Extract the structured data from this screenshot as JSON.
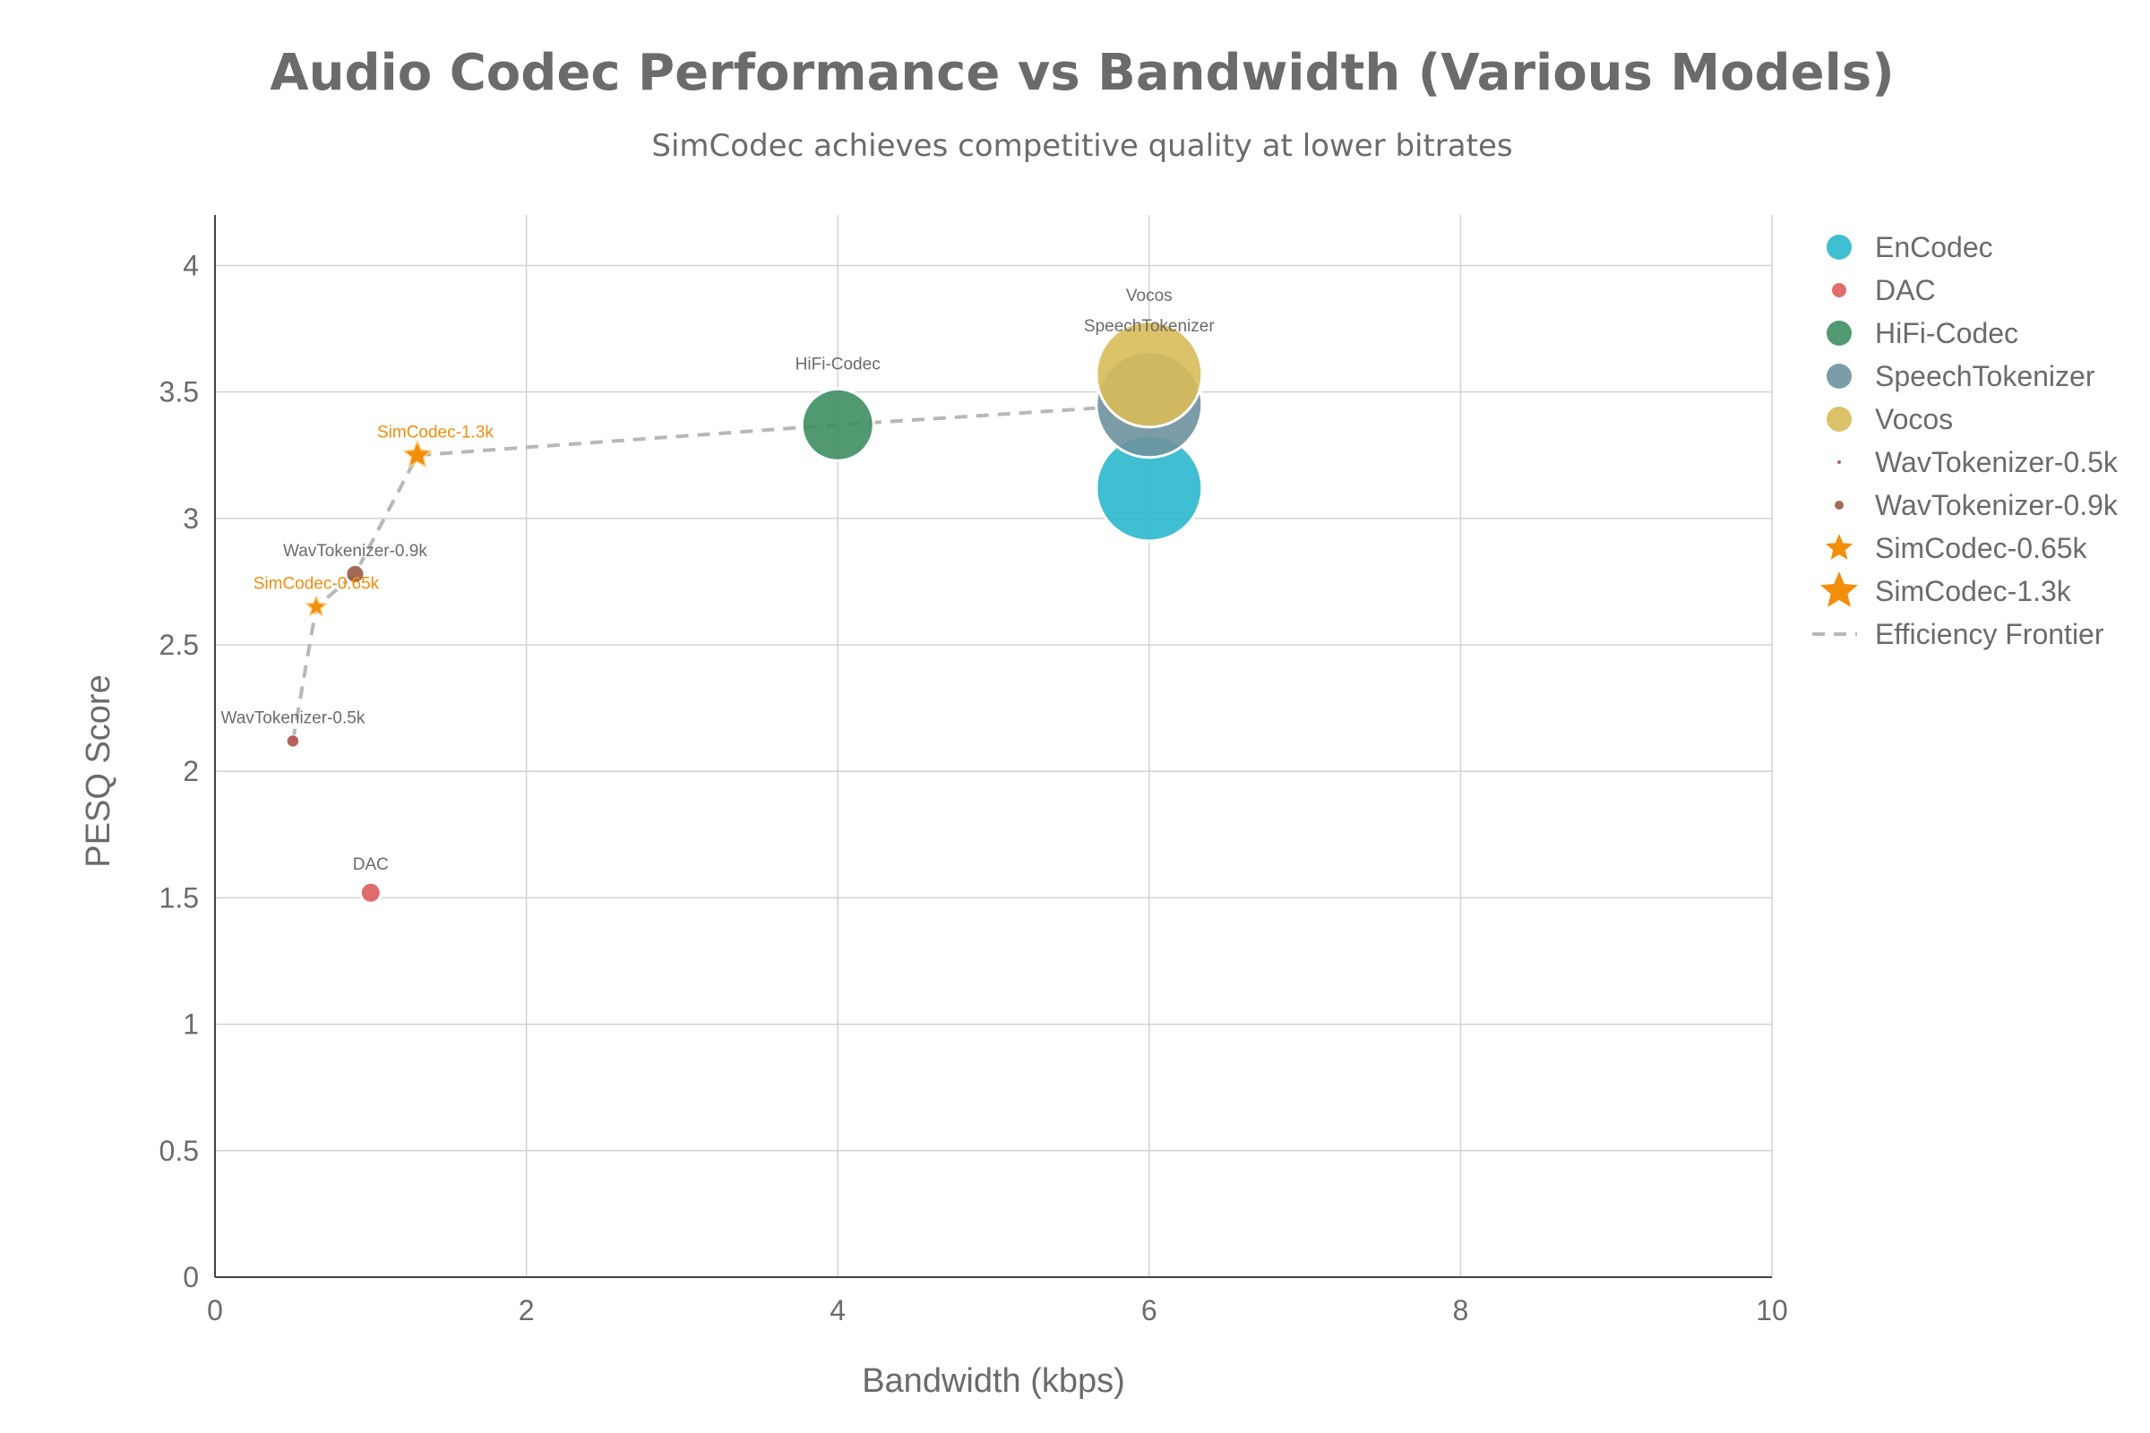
{
  "chart_data": {
    "type": "scatter",
    "title": "Audio Codec Performance vs Bandwidth (Various Models)",
    "subtitle": "SimCodec achieves competitive quality at lower bitrates",
    "xlabel": "Bandwidth (kbps)",
    "ylabel": "PESQ Score",
    "xlim": [
      0,
      10
    ],
    "ylim": [
      0,
      4.2
    ],
    "xticks": [
      0,
      2,
      4,
      6,
      8,
      10
    ],
    "xtick_labels": [
      "0",
      "2",
      "4",
      "6",
      "8",
      "10"
    ],
    "yticks": [
      0,
      0.5,
      1,
      1.5,
      2,
      2.5,
      3,
      3.5,
      4
    ],
    "ytick_labels": [
      "0",
      "0.5",
      "1",
      "1.5",
      "2",
      "2.5",
      "3",
      "3.5",
      "4"
    ],
    "grid": true,
    "legend_position": "right",
    "series": [
      {
        "name": "EnCodec",
        "marker": "circle",
        "color": "#2bb7cd",
        "x": 6,
        "y": 3.12,
        "size": 6,
        "label": ""
      },
      {
        "name": "DAC",
        "marker": "circle",
        "color": "#dd5c5c",
        "x": 1,
        "y": 1.52,
        "size": 1,
        "label": "DAC"
      },
      {
        "name": "HiFi-Codec",
        "marker": "circle",
        "color": "#3e8f62",
        "x": 4,
        "y": 3.37,
        "size": 4,
        "label": "HiFi-Codec"
      },
      {
        "name": "SpeechTokenizer",
        "marker": "circle",
        "color": "#6e929e",
        "x": 6,
        "y": 3.45,
        "size": 6,
        "label": "SpeechTokenizer"
      },
      {
        "name": "Vocos",
        "marker": "circle",
        "color": "#d8bb58",
        "x": 6,
        "y": 3.57,
        "size": 6,
        "label": "Vocos"
      },
      {
        "name": "WavTokenizer-0.5k",
        "marker": "circle",
        "color": "#b0524d",
        "x": 0.5,
        "y": 2.12,
        "size": 0.5,
        "label": "WavTokenizer-0.5k"
      },
      {
        "name": "WavTokenizer-0.9k",
        "marker": "circle",
        "color": "#9a5a46",
        "x": 0.9,
        "y": 2.78,
        "size": 0.9,
        "label": "WavTokenizer-0.9k"
      },
      {
        "name": "SimCodec-0.65k",
        "marker": "star",
        "color": "#f28e0a",
        "x": 0.65,
        "y": 2.65,
        "size": 0.65,
        "label": "SimCodec-0.65k"
      },
      {
        "name": "SimCodec-1.3k",
        "marker": "star",
        "color": "#f28e0a",
        "x": 1.3,
        "y": 3.25,
        "size": 1.3,
        "label": "SimCodec-1.3k"
      }
    ],
    "frontier": {
      "name": "Efficiency Frontier",
      "color": "#b8b8b8",
      "x": [
        0.5,
        0.65,
        0.9,
        1.3,
        4,
        6,
        6
      ],
      "y": [
        2.12,
        2.65,
        2.78,
        3.25,
        3.37,
        3.45,
        3.57
      ]
    }
  }
}
